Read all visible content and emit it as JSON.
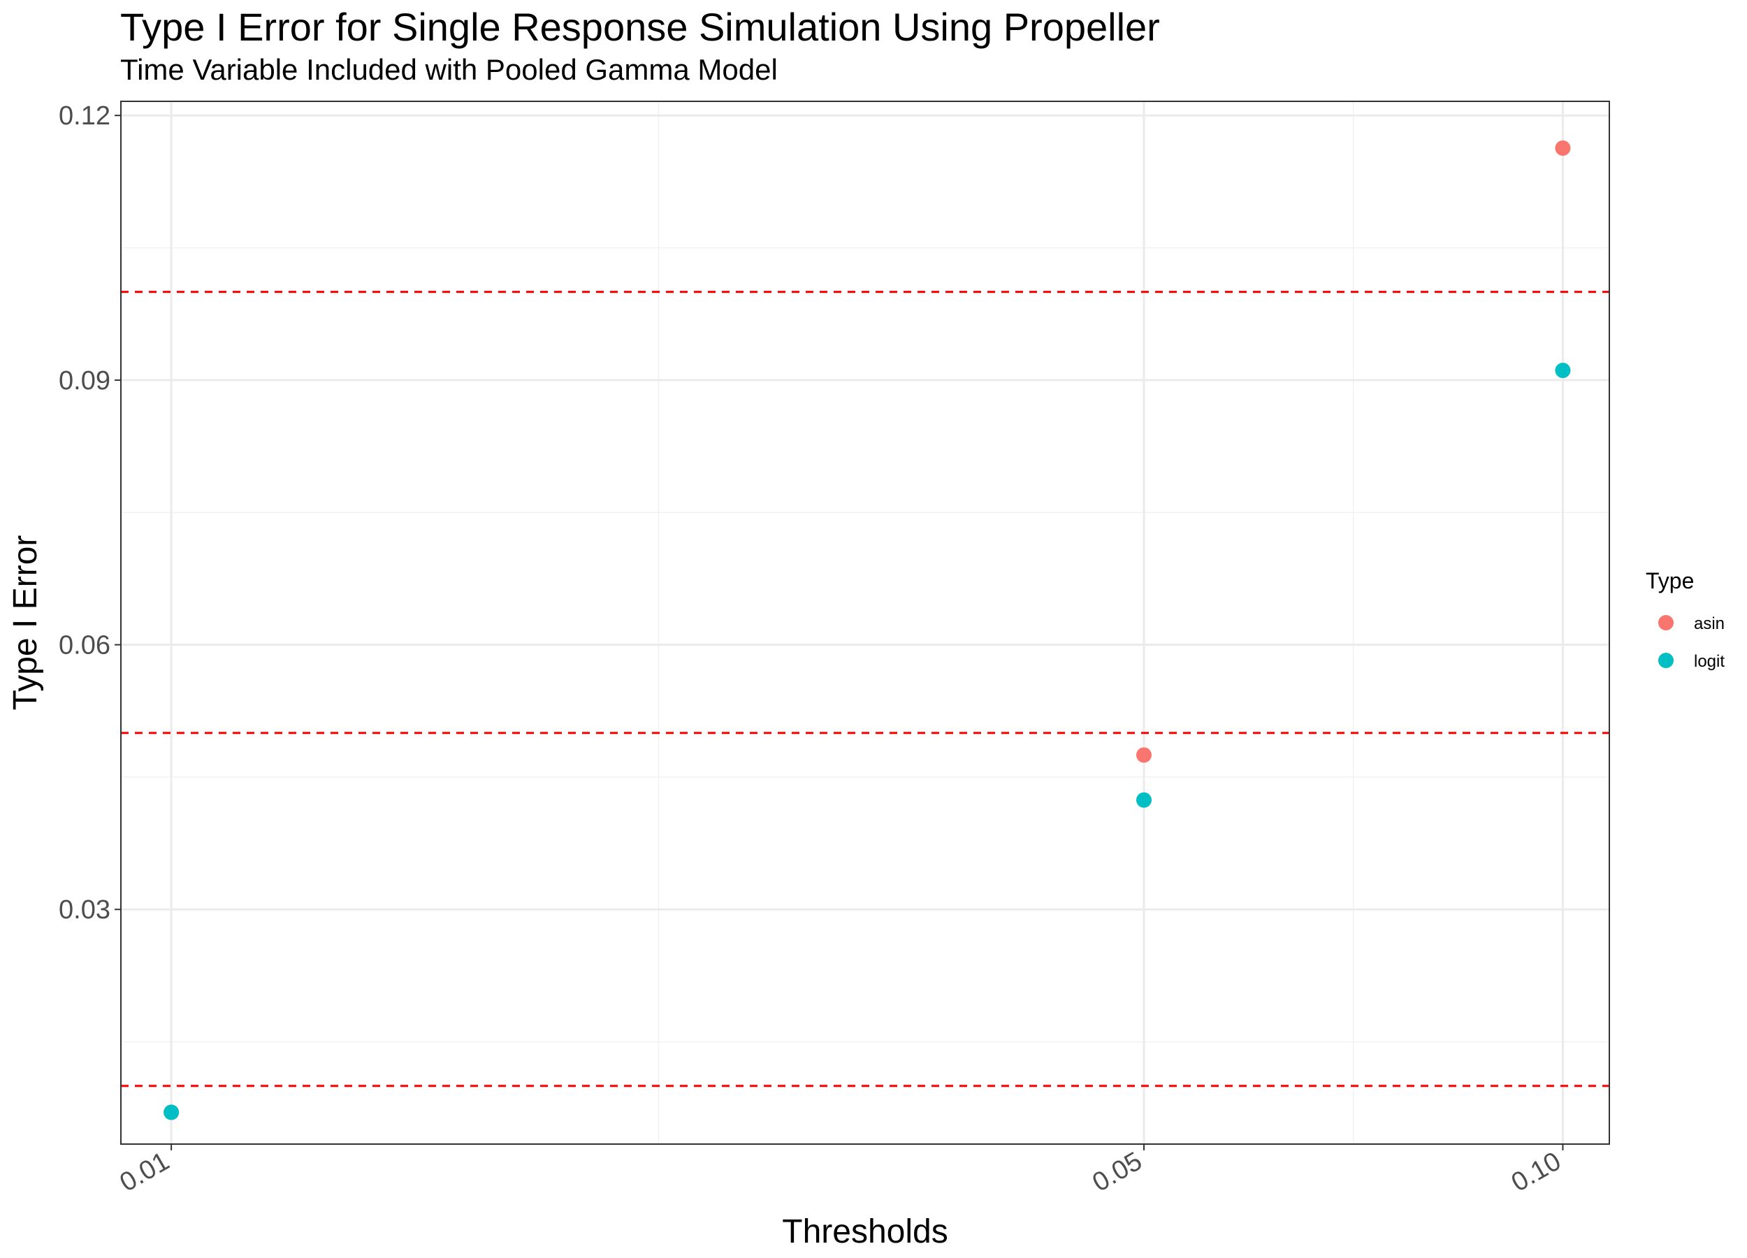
{
  "chart_data": {
    "type": "scatter",
    "title": "Type I Error for Single Response Simulation Using Propeller",
    "subtitle": "Time Variable Included with Pooled Gamma Model",
    "xlabel": "Thresholds",
    "ylabel": "Type I Error",
    "x_scale": "log10",
    "xlim": [
      0.0092,
      0.108
    ],
    "ylim": [
      0.0034,
      0.1216
    ],
    "x_ticks": [
      0.01,
      0.05,
      0.1
    ],
    "x_tick_labels": [
      "0.01",
      "0.05",
      "0.10"
    ],
    "y_ticks": [
      0.03,
      0.06,
      0.09,
      0.12
    ],
    "y_tick_labels": [
      "0.03",
      "0.06",
      "0.09",
      "0.12"
    ],
    "y_minor_ticks": [
      0.015,
      0.045,
      0.075,
      0.105
    ],
    "x_minor_ticks": [
      0.0224,
      0.0707
    ],
    "grid": true,
    "reference_lines": {
      "y": [
        0.01,
        0.05,
        0.1
      ],
      "color": "#ff0000",
      "style": "dashed"
    },
    "legend": {
      "title": "Type",
      "position": "right"
    },
    "series": [
      {
        "name": "asin",
        "color": "#f8766d",
        "points": [
          {
            "x": 0.01,
            "y": 0.007
          },
          {
            "x": 0.05,
            "y": 0.0475
          },
          {
            "x": 0.1,
            "y": 0.1163
          }
        ]
      },
      {
        "name": "logit",
        "color": "#00bfc4",
        "points": [
          {
            "x": 0.01,
            "y": 0.007
          },
          {
            "x": 0.05,
            "y": 0.0424
          },
          {
            "x": 0.1,
            "y": 0.0911
          }
        ]
      }
    ]
  }
}
